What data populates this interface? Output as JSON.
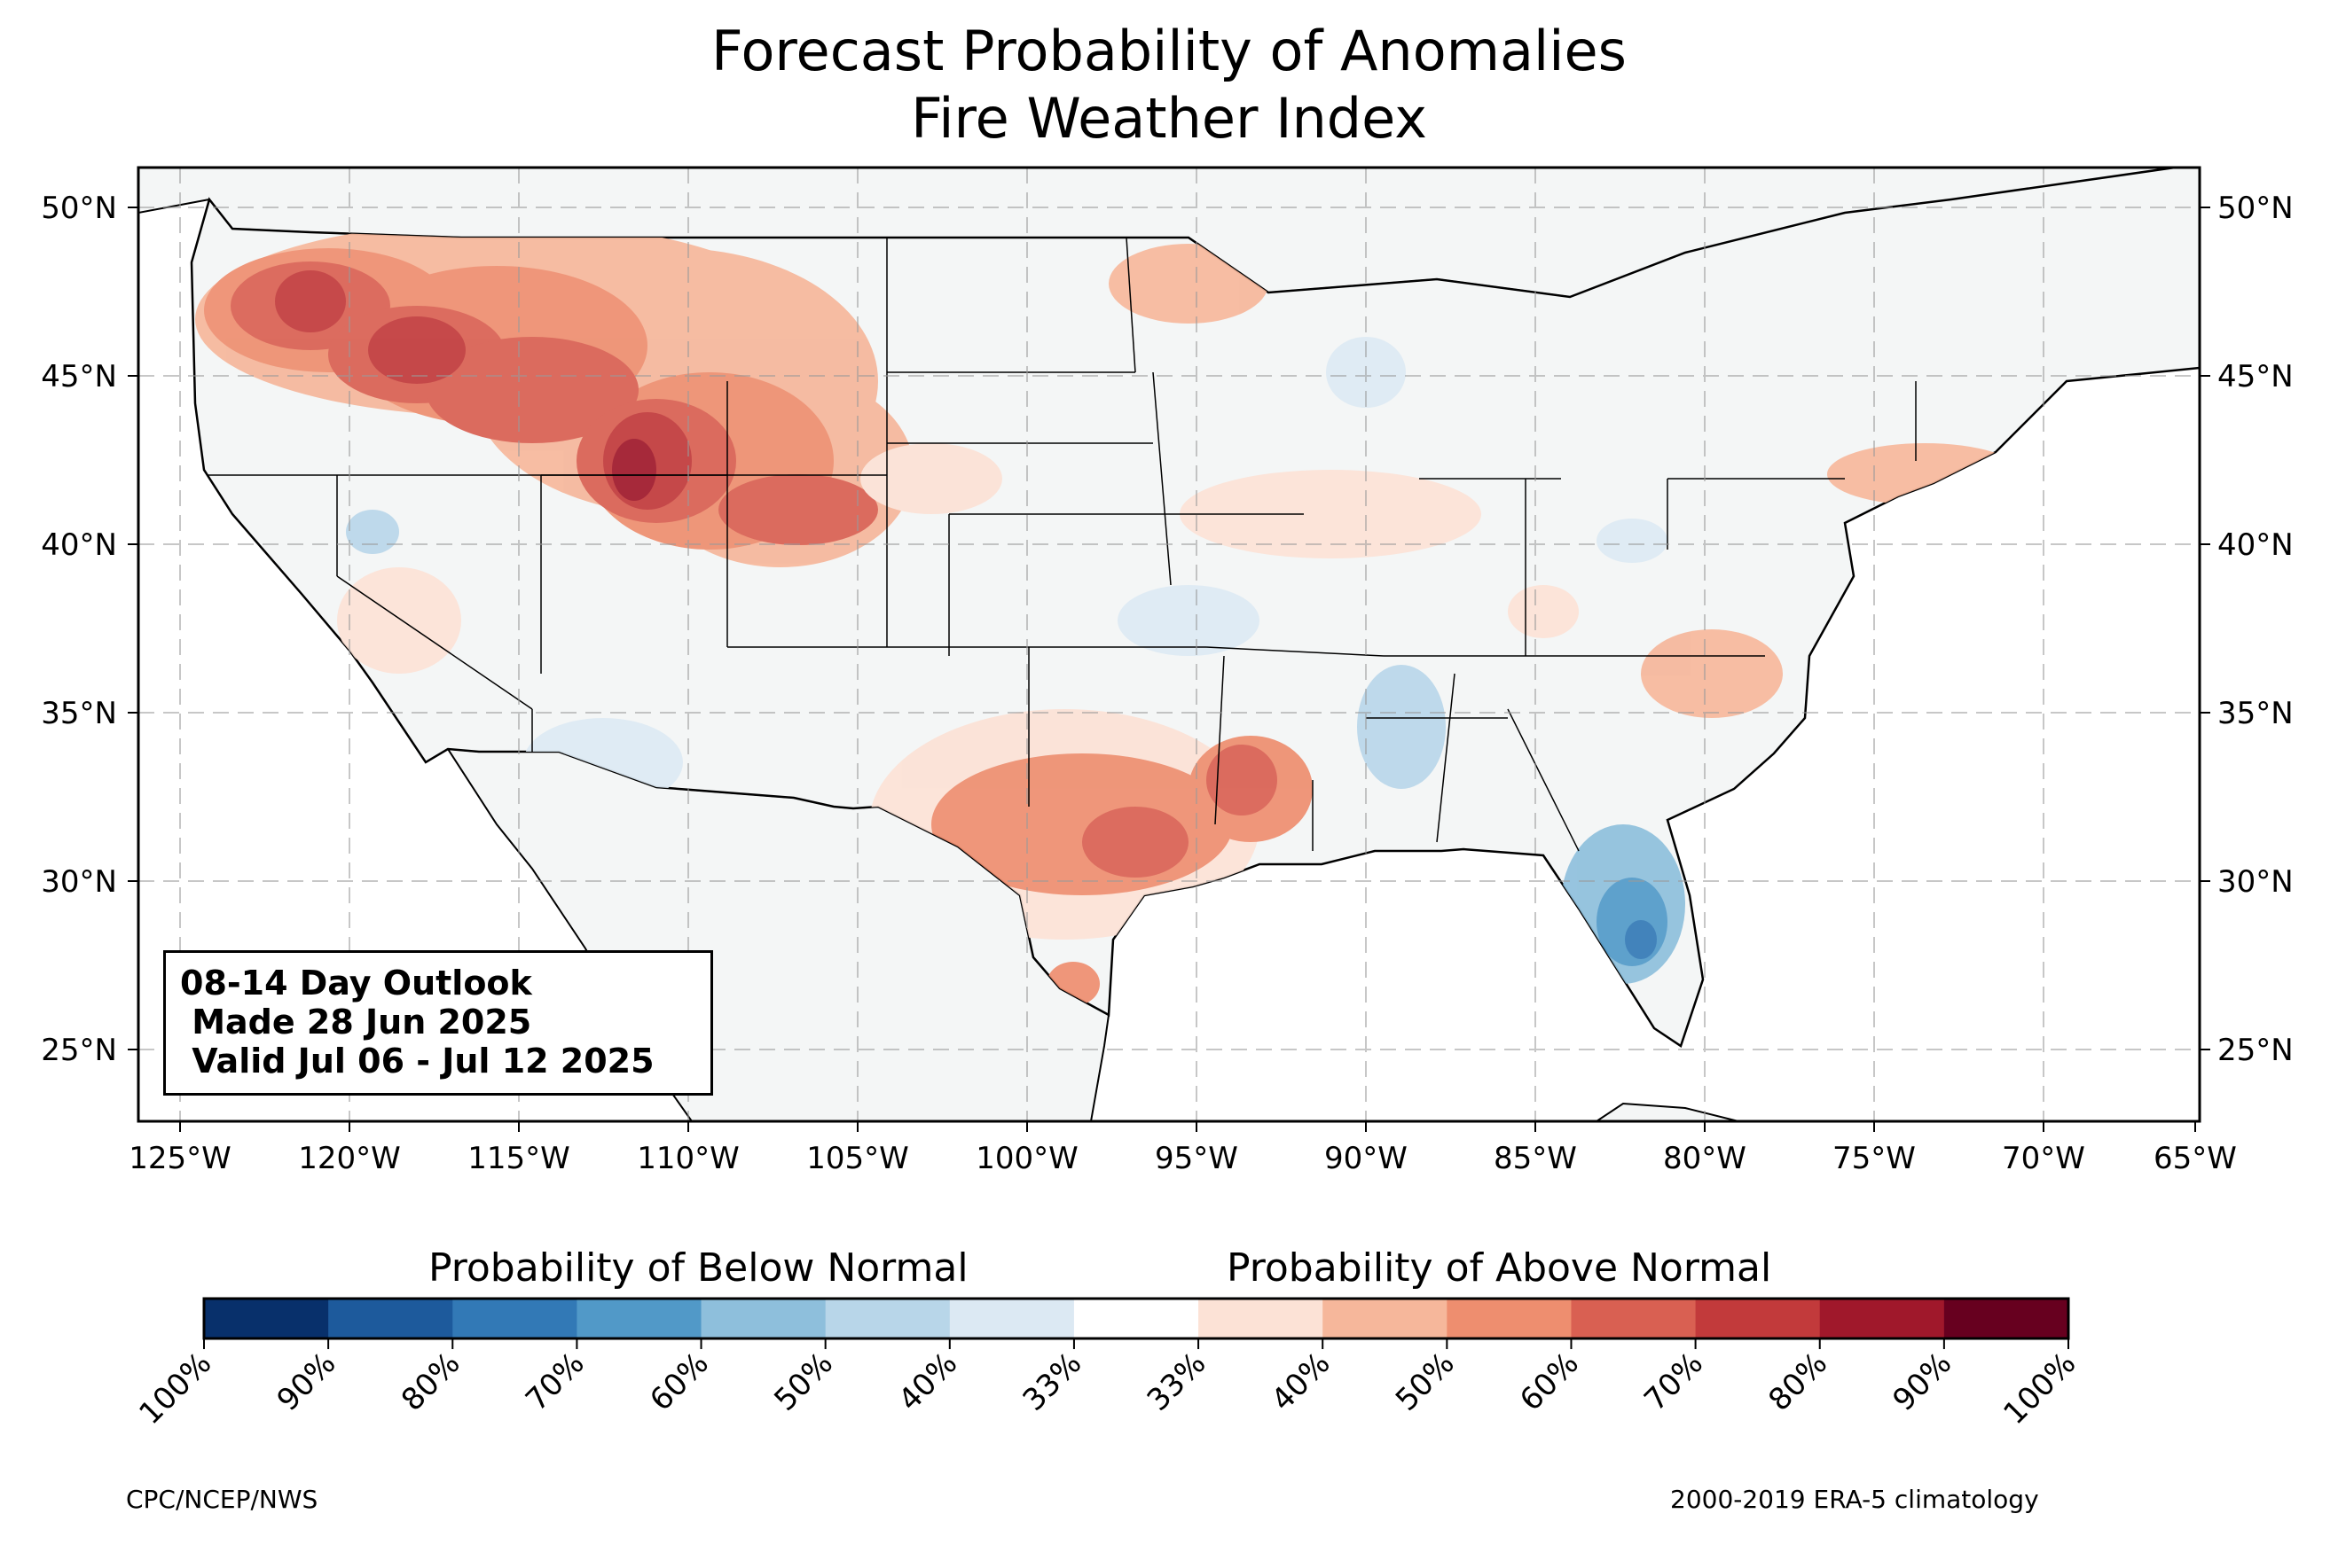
{
  "title": {
    "line1": "Forecast Probability of Anomalies",
    "line2": "Fire Weather Index"
  },
  "map": {
    "lat_labels": [
      "50°N",
      "45°N",
      "40°N",
      "35°N",
      "30°N",
      "25°N"
    ],
    "lon_labels": [
      "125°W",
      "120°W",
      "115°W",
      "110°W",
      "105°W",
      "100°W",
      "95°W",
      "90°W",
      "85°W",
      "80°W",
      "75°W",
      "70°W",
      "65°W"
    ],
    "extent": {
      "lon_min": -126.3,
      "lon_max": -65.1,
      "lat_min": 22.8,
      "lat_max": 51.2
    },
    "land_color": "#f4f6f6",
    "highlights": [
      {
        "name": "Pacific Northwest / Northern Rockies",
        "category": "above",
        "level": 0.6
      },
      {
        "name": "Southern Idaho / Wyoming",
        "category": "above",
        "level": 0.7
      },
      {
        "name": "Texas / Arkansas",
        "category": "above",
        "level": 0.55
      },
      {
        "name": "Florida",
        "category": "below",
        "level": 0.6
      }
    ]
  },
  "outlook": {
    "line1": "08-14 Day Outlook",
    "line2": " Made 28 Jun 2025",
    "line3": " Valid Jul 06 - Jul 12 2025"
  },
  "colorbar": {
    "below_label": "Probability of Below Normal",
    "above_label": "Probability of Above Normal",
    "ticks": [
      "100%",
      "90%",
      "80%",
      "70%",
      "60%",
      "50%",
      "40%",
      "33%",
      "33%",
      "40%",
      "50%",
      "60%",
      "70%",
      "80%",
      "90%",
      "100%"
    ],
    "colors": [
      "#08306b",
      "#1d5a9c",
      "#3279b6",
      "#5199c8",
      "#8ebfdc",
      "#b8d6e9",
      "#dce9f3",
      "#ffffff",
      "#fce2d6",
      "#f6b79b",
      "#ee8e6f",
      "#d96052",
      "#c23a3b",
      "#a0182b",
      "#67001f"
    ]
  },
  "footer": {
    "left": "CPC/NCEP/NWS",
    "right": "2000-2019 ERA-5 climatology"
  }
}
